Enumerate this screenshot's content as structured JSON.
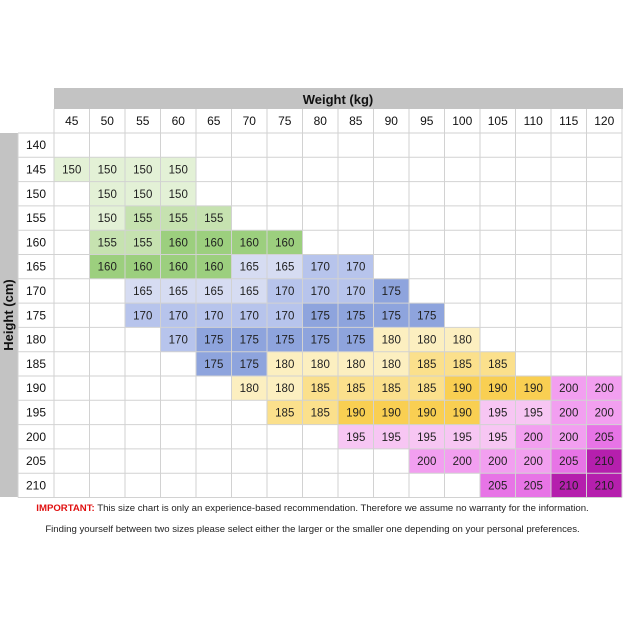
{
  "chart_data": {
    "type": "table",
    "title": "Weight (kg)",
    "xlabel": "Weight (kg)",
    "ylabel": "Height (cm)",
    "weights": [
      "45",
      "50",
      "55",
      "60",
      "65",
      "70",
      "75",
      "80",
      "85",
      "90",
      "95",
      "100",
      "105",
      "110",
      "115",
      "120"
    ],
    "heights": [
      "140",
      "145",
      "150",
      "155",
      "160",
      "165",
      "170",
      "175",
      "180",
      "185",
      "190",
      "195",
      "200",
      "205",
      "210"
    ],
    "rows": [
      {
        "height": "140",
        "start": 0,
        "sizes": []
      },
      {
        "height": "145",
        "start": 0,
        "sizes": [
          150,
          150,
          150,
          150
        ]
      },
      {
        "height": "150",
        "start": 1,
        "sizes": [
          150,
          150,
          150
        ]
      },
      {
        "height": "155",
        "start": 1,
        "sizes": [
          150,
          155,
          155,
          155
        ]
      },
      {
        "height": "160",
        "start": 1,
        "sizes": [
          155,
          155,
          160,
          160,
          160,
          160
        ]
      },
      {
        "height": "165",
        "start": 1,
        "sizes": [
          160,
          160,
          160,
          160,
          165,
          165,
          170,
          170
        ]
      },
      {
        "height": "170",
        "start": 2,
        "sizes": [
          165,
          165,
          165,
          165,
          170,
          170,
          170,
          175
        ]
      },
      {
        "height": "175",
        "start": 2,
        "sizes": [
          170,
          170,
          170,
          170,
          170,
          175,
          175,
          175,
          175
        ]
      },
      {
        "height": "180",
        "start": 3,
        "sizes": [
          170,
          175,
          175,
          175,
          175,
          175,
          180,
          180,
          180
        ]
      },
      {
        "height": "185",
        "start": 4,
        "sizes": [
          175,
          175,
          180,
          180,
          180,
          180,
          185,
          185,
          185
        ]
      },
      {
        "height": "190",
        "start": 5,
        "sizes": [
          180,
          180,
          185,
          185,
          185,
          185,
          190,
          190,
          190,
          200,
          200
        ]
      },
      {
        "height": "195",
        "start": 6,
        "sizes": [
          185,
          185,
          190,
          190,
          190,
          190,
          195,
          195,
          200,
          200
        ]
      },
      {
        "height": "200",
        "start": 8,
        "sizes": [
          195,
          195,
          195,
          195,
          195,
          200,
          200,
          205
        ]
      },
      {
        "height": "205",
        "start": 10,
        "sizes": [
          200,
          200,
          200,
          200,
          205,
          210
        ]
      },
      {
        "height": "210",
        "start": 12,
        "sizes": [
          205,
          205,
          210,
          210
        ]
      }
    ],
    "size_colors": {
      "150": "#e3f1d6",
      "155": "#c6e2b0",
      "160": "#9ccf7e",
      "165": "#d6dcf2",
      "170": "#b7c4ec",
      "175": "#8ea4dd",
      "180": "#fcefc0",
      "185": "#fbe08c",
      "190": "#f9cf52",
      "195": "#f7c6f3",
      "200": "#f29ff0",
      "205": "#e774e6",
      "210": "#b51fad"
    }
  },
  "colors": {
    "header_bg": "#c3c3c3",
    "grid": "#d2d2d2",
    "important_red": "#e01010"
  },
  "footer": {
    "important_label": "IMPORTANT:",
    "line1": "This size chart is only an experience-based recommendation. Therefore we assume no warranty for the information.",
    "line2": "Finding yourself between two sizes please select either the larger or the smaller one depending on your personal preferences."
  }
}
